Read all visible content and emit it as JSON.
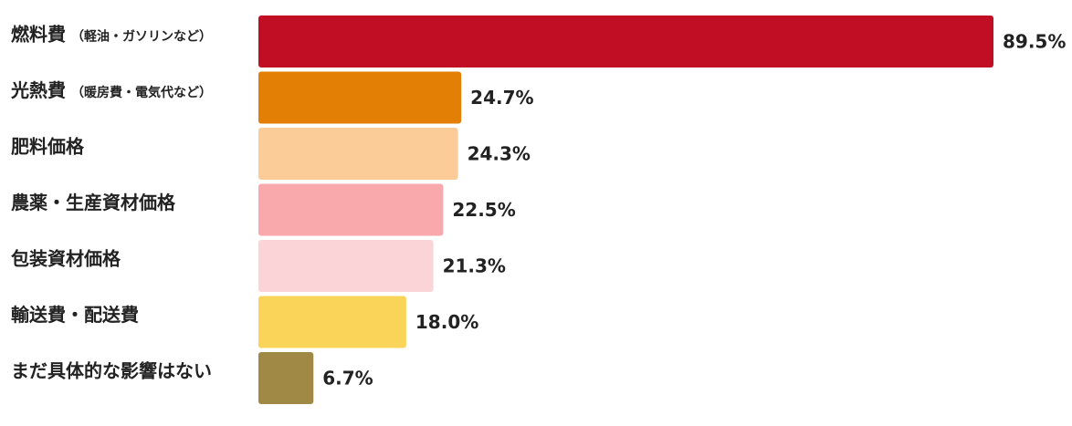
{
  "chart_data": {
    "type": "bar",
    "orientation": "horizontal",
    "categories": [
      {
        "main": "燃料費",
        "note": "（軽油・ガソリンなど）"
      },
      {
        "main": "光熱費",
        "note": "（暖房費・電気代など）"
      },
      {
        "main": "肥料価格",
        "note": ""
      },
      {
        "main": "農薬・生産資材価格",
        "note": ""
      },
      {
        "main": "包装資材価格",
        "note": ""
      },
      {
        "main": "輸送費・配送費",
        "note": ""
      },
      {
        "main": "まだ具体的な影響はない",
        "note": ""
      }
    ],
    "values": [
      89.5,
      24.7,
      24.3,
      22.5,
      21.3,
      18.0,
      6.7
    ],
    "value_labels": [
      "89.5%",
      "24.7%",
      "24.3%",
      "22.5%",
      "21.3%",
      "18.0%",
      "6.7%"
    ],
    "colors": [
      "#C20E24",
      "#E47F05",
      "#FBCB98",
      "#F9A9AC",
      "#FBD4D8",
      "#F9D459",
      "#A08945"
    ],
    "xlim": [
      0,
      100
    ],
    "grid": false,
    "legend": "none",
    "title": "",
    "xlabel": "",
    "ylabel": ""
  }
}
